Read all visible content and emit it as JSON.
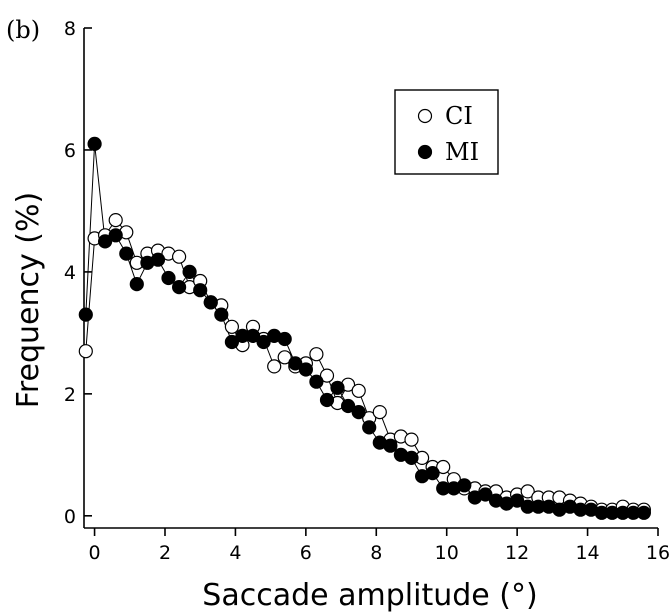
{
  "chart_data": {
    "type": "line",
    "panel_label": "(b)",
    "title": "",
    "xlabel": "Saccade amplitude (°)",
    "ylabel": "Frequency (%)",
    "xlim": [
      -0.3,
      16
    ],
    "ylim": [
      -0.2,
      8
    ],
    "xticks": [
      0,
      2,
      4,
      6,
      8,
      10,
      12,
      14,
      16
    ],
    "yticks": [
      0,
      2,
      4,
      6,
      8
    ],
    "grid": false,
    "legend_position": "top-right",
    "series": [
      {
        "name": "CI",
        "marker": "open-circle",
        "x": [
          -0.25,
          0,
          0.3,
          0.6,
          0.9,
          1.2,
          1.5,
          1.8,
          2.1,
          2.4,
          2.7,
          3.0,
          3.3,
          3.6,
          3.9,
          4.2,
          4.5,
          4.8,
          5.1,
          5.4,
          5.7,
          6.0,
          6.3,
          6.6,
          6.9,
          7.2,
          7.5,
          7.8,
          8.1,
          8.4,
          8.7,
          9.0,
          9.3,
          9.6,
          9.9,
          10.2,
          10.5,
          10.8,
          11.1,
          11.4,
          11.7,
          12.0,
          12.3,
          12.6,
          12.9,
          13.2,
          13.5,
          13.8,
          14.1,
          14.4,
          14.7,
          15.0,
          15.3,
          15.6
        ],
        "y": [
          2.7,
          4.55,
          4.6,
          4.85,
          4.65,
          4.15,
          4.3,
          4.35,
          4.3,
          4.25,
          3.75,
          3.85,
          3.5,
          3.45,
          3.1,
          2.8,
          3.1,
          2.9,
          2.45,
          2.6,
          2.45,
          2.5,
          2.65,
          2.3,
          1.85,
          2.15,
          2.05,
          1.6,
          1.7,
          1.25,
          1.3,
          1.25,
          0.95,
          0.8,
          0.8,
          0.6,
          0.45,
          0.45,
          0.4,
          0.4,
          0.3,
          0.35,
          0.4,
          0.3,
          0.3,
          0.3,
          0.25,
          0.2,
          0.15,
          0.1,
          0.1,
          0.15,
          0.1,
          0.1
        ]
      },
      {
        "name": "MI",
        "marker": "filled-circle",
        "x": [
          -0.25,
          0,
          0.3,
          0.6,
          0.9,
          1.2,
          1.5,
          1.8,
          2.1,
          2.4,
          2.7,
          3.0,
          3.3,
          3.6,
          3.9,
          4.2,
          4.5,
          4.8,
          5.1,
          5.4,
          5.7,
          6.0,
          6.3,
          6.6,
          6.9,
          7.2,
          7.5,
          7.8,
          8.1,
          8.4,
          8.7,
          9.0,
          9.3,
          9.6,
          9.9,
          10.2,
          10.5,
          10.8,
          11.1,
          11.4,
          11.7,
          12.0,
          12.3,
          12.6,
          12.9,
          13.2,
          13.5,
          13.8,
          14.1,
          14.4,
          14.7,
          15.0,
          15.3,
          15.6
        ],
        "y": [
          3.3,
          6.1,
          4.5,
          4.6,
          4.3,
          3.8,
          4.15,
          4.2,
          3.9,
          3.75,
          4.0,
          3.7,
          3.5,
          3.3,
          2.85,
          2.95,
          2.95,
          2.85,
          2.95,
          2.9,
          2.5,
          2.4,
          2.2,
          1.9,
          2.1,
          1.8,
          1.7,
          1.45,
          1.2,
          1.15,
          1.0,
          0.95,
          0.65,
          0.7,
          0.45,
          0.45,
          0.5,
          0.3,
          0.35,
          0.25,
          0.2,
          0.25,
          0.15,
          0.15,
          0.15,
          0.1,
          0.15,
          0.1,
          0.1,
          0.05,
          0.05,
          0.05,
          0.05,
          0.05
        ]
      }
    ]
  }
}
